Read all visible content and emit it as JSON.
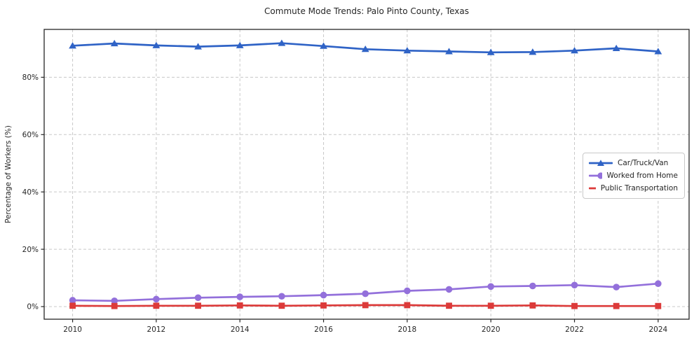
{
  "title": "Commute Mode Trends: Palo Pinto County, Texas",
  "chart_data": {
    "type": "line",
    "title": "Commute Mode Trends: Palo Pinto County, Texas",
    "xlabel": "",
    "ylabel": "Percentage of Workers (%)",
    "x": [
      2010,
      2011,
      2012,
      2013,
      2014,
      2015,
      2016,
      2017,
      2018,
      2019,
      2020,
      2021,
      2022,
      2023,
      2024
    ],
    "series": [
      {
        "name": "Car/Truck/Van",
        "color": "#2f63c6",
        "marker": "triangle",
        "values": [
          91.0,
          91.8,
          91.1,
          90.7,
          91.1,
          91.9,
          90.9,
          89.8,
          89.3,
          89.0,
          88.7,
          88.8,
          89.3,
          90.1,
          89.0
        ]
      },
      {
        "name": "Worked from Home",
        "color": "#9370db",
        "marker": "circle",
        "values": [
          2.2,
          2.0,
          2.6,
          3.1,
          3.4,
          3.6,
          4.0,
          4.5,
          5.5,
          6.0,
          7.0,
          7.2,
          7.5,
          6.8,
          8.0
        ]
      },
      {
        "name": "Public Transportation",
        "color": "#dc3a39",
        "marker": "square",
        "values": [
          0.3,
          0.2,
          0.3,
          0.3,
          0.4,
          0.3,
          0.4,
          0.5,
          0.5,
          0.3,
          0.3,
          0.4,
          0.2,
          0.2,
          0.2
        ]
      }
    ],
    "xtick_values": [
      2010,
      2012,
      2014,
      2016,
      2018,
      2020,
      2022,
      2024
    ],
    "xtick_labels": [
      "2010",
      "2012",
      "2014",
      "2016",
      "2018",
      "2020",
      "2022",
      "2024"
    ],
    "ytick_values": [
      0,
      20,
      40,
      60,
      80
    ],
    "ytick_labels": [
      "0%",
      "20%",
      "40%",
      "60%",
      "80%"
    ],
    "xlim": [
      2009.32,
      2024.74
    ],
    "ylim": [
      -4.4,
      96.7
    ],
    "grid": true,
    "grid_color": "#c8c8c8",
    "frame_color": "#262626",
    "legend_position": "center right"
  }
}
